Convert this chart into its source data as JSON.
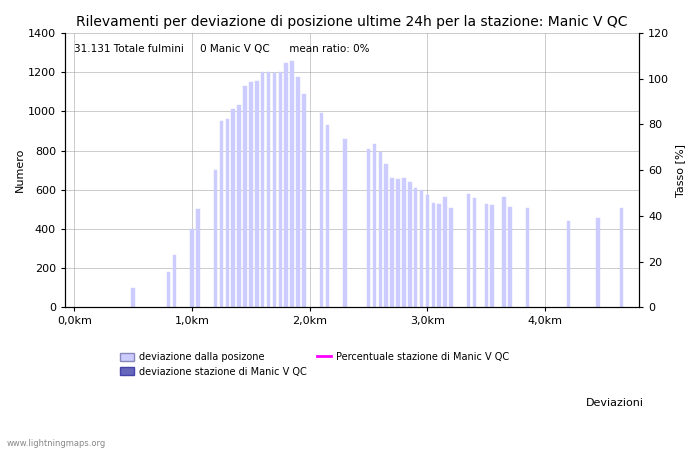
{
  "title": "Rilevamenti per deviazione di posizione ultime 24h per la stazione: Manic V QC",
  "subtitle": "31.131 Totale fulmini     0 Manic V QC      mean ratio: 0%",
  "xlabel": "Deviazioni",
  "ylabel_left": "Numero",
  "ylabel_right": "Tasso [%]",
  "watermark": "www.lightningmaps.org",
  "bar_data": [
    [
      50,
      0
    ],
    [
      100,
      0
    ],
    [
      150,
      0
    ],
    [
      200,
      0
    ],
    [
      250,
      0
    ],
    [
      300,
      0
    ],
    [
      350,
      0
    ],
    [
      400,
      0
    ],
    [
      450,
      0
    ],
    [
      500,
      100
    ],
    [
      550,
      0
    ],
    [
      600,
      0
    ],
    [
      650,
      0
    ],
    [
      700,
      0
    ],
    [
      750,
      0
    ],
    [
      800,
      180
    ],
    [
      850,
      270
    ],
    [
      900,
      0
    ],
    [
      950,
      0
    ],
    [
      1000,
      400
    ],
    [
      1050,
      500
    ],
    [
      1100,
      0
    ],
    [
      1150,
      0
    ],
    [
      1200,
      700
    ],
    [
      1250,
      950
    ],
    [
      1300,
      960
    ],
    [
      1350,
      1010
    ],
    [
      1400,
      1030
    ],
    [
      1450,
      1130
    ],
    [
      1500,
      1150
    ],
    [
      1550,
      1155
    ],
    [
      1600,
      1200
    ],
    [
      1650,
      1200
    ],
    [
      1700,
      1195
    ],
    [
      1750,
      1200
    ],
    [
      1800,
      1245
    ],
    [
      1850,
      1255
    ],
    [
      1900,
      1175
    ],
    [
      1950,
      1090
    ],
    [
      2000,
      0
    ],
    [
      2050,
      0
    ],
    [
      2100,
      990
    ],
    [
      2150,
      930
    ],
    [
      2200,
      0
    ],
    [
      2250,
      0
    ],
    [
      2300,
      860
    ],
    [
      2350,
      0
    ],
    [
      2400,
      0
    ],
    [
      2450,
      0
    ],
    [
      2500,
      810
    ],
    [
      2550,
      835
    ],
    [
      2600,
      795
    ],
    [
      2650,
      730
    ],
    [
      2700,
      660
    ],
    [
      2750,
      655
    ],
    [
      2800,
      660
    ],
    [
      2850,
      640
    ],
    [
      2900,
      610
    ],
    [
      2950,
      600
    ],
    [
      3000,
      575
    ],
    [
      3050,
      535
    ],
    [
      3100,
      530
    ],
    [
      3150,
      565
    ],
    [
      3200,
      505
    ],
    [
      3250,
      0
    ],
    [
      3300,
      0
    ],
    [
      3350,
      580
    ],
    [
      3400,
      560
    ],
    [
      3450,
      0
    ],
    [
      3500,
      530
    ],
    [
      3550,
      525
    ],
    [
      3600,
      0
    ],
    [
      3650,
      565
    ],
    [
      3700,
      510
    ],
    [
      3750,
      0
    ],
    [
      3800,
      0
    ],
    [
      3850,
      505
    ],
    [
      3900,
      0
    ],
    [
      3950,
      0
    ],
    [
      4000,
      0
    ],
    [
      4050,
      0
    ],
    [
      4100,
      0
    ],
    [
      4150,
      0
    ],
    [
      4200,
      440
    ],
    [
      4250,
      0
    ],
    [
      4300,
      0
    ],
    [
      4350,
      0
    ],
    [
      4400,
      0
    ],
    [
      4450,
      455
    ],
    [
      4500,
      0
    ],
    [
      4550,
      0
    ],
    [
      4600,
      0
    ],
    [
      4650,
      505
    ],
    [
      4700,
      0
    ]
  ],
  "bar_color_light": "#ccccff",
  "bar_color_dark": "#6666bb",
  "ylim_left": [
    0,
    1400
  ],
  "ylim_right": [
    0,
    120
  ],
  "yticks_left": [
    0,
    200,
    400,
    600,
    800,
    1000,
    1200,
    1400
  ],
  "yticks_right": [
    0,
    20,
    40,
    60,
    80,
    100,
    120
  ],
  "xtick_labels": [
    "0,0km",
    "1,0km",
    "2,0km",
    "3,0km",
    "4,0km"
  ],
  "xtick_positions": [
    0,
    1000,
    2000,
    3000,
    4000
  ],
  "title_fontsize": 10,
  "subtitle_fontsize": 7.5,
  "axis_fontsize": 8,
  "tick_fontsize": 8,
  "background_color": "#ffffff",
  "grid_color": "#999999"
}
